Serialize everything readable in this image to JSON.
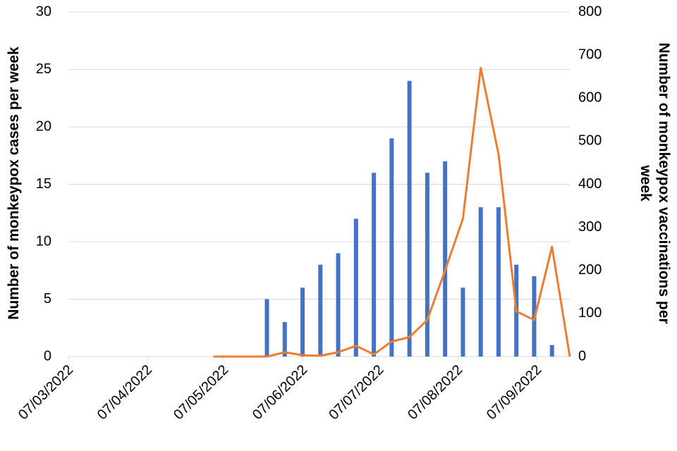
{
  "chart_data": {
    "type": "bar-line",
    "y_label": "Number of monkeypox cases per week",
    "y2_label": "Number of monkeypox vaccinations per week",
    "xlim": [
      "2022-03-07",
      "2022-09-20"
    ],
    "xticks": [
      {
        "value": "2022-03-07",
        "label": "07/03/2022"
      },
      {
        "value": "2022-04-07",
        "label": "07/04/2022"
      },
      {
        "value": "2022-05-07",
        "label": "07/05/2022"
      },
      {
        "value": "2022-06-07",
        "label": "07/06/2022"
      },
      {
        "value": "2022-07-07",
        "label": "07/07/2022"
      },
      {
        "value": "2022-08-07",
        "label": "07/08/2022"
      },
      {
        "value": "2022-09-07",
        "label": "07/09/2022"
      }
    ],
    "ylim": [
      0,
      30
    ],
    "yticks": [
      0,
      5,
      10,
      15,
      20,
      25,
      30
    ],
    "y2lim": [
      0,
      800
    ],
    "y2ticks": [
      0,
      100,
      200,
      300,
      400,
      500,
      600,
      700,
      800
    ],
    "grid": true,
    "series": [
      {
        "type": "bar",
        "color": "#4472c4",
        "axis": "y",
        "x": [
          "2022-05-24",
          "2022-05-31",
          "2022-06-07",
          "2022-06-14",
          "2022-06-21",
          "2022-06-28",
          "2022-07-05",
          "2022-07-12",
          "2022-07-19",
          "2022-07-26",
          "2022-08-02",
          "2022-08-09",
          "2022-08-16",
          "2022-08-23",
          "2022-08-30",
          "2022-09-06",
          "2022-09-13"
        ],
        "values": [
          5,
          3,
          6,
          8,
          9,
          12,
          16,
          19,
          24,
          16,
          17,
          6,
          13,
          13,
          8,
          7,
          1
        ]
      },
      {
        "type": "line",
        "color": "#ed7d31",
        "axis": "y2",
        "x": [
          "2022-05-03",
          "2022-05-10",
          "2022-05-17",
          "2022-05-24",
          "2022-05-31",
          "2022-06-07",
          "2022-06-14",
          "2022-06-21",
          "2022-06-28",
          "2022-07-05",
          "2022-07-12",
          "2022-07-19",
          "2022-07-26",
          "2022-08-02",
          "2022-08-09",
          "2022-08-16",
          "2022-08-23",
          "2022-08-30",
          "2022-09-06",
          "2022-09-13",
          "2022-09-20"
        ],
        "values": [
          0,
          0,
          0,
          0,
          10,
          3,
          2,
          10,
          25,
          5,
          35,
          45,
          85,
          200,
          320,
          670,
          470,
          105,
          85,
          255,
          0
        ]
      }
    ]
  }
}
